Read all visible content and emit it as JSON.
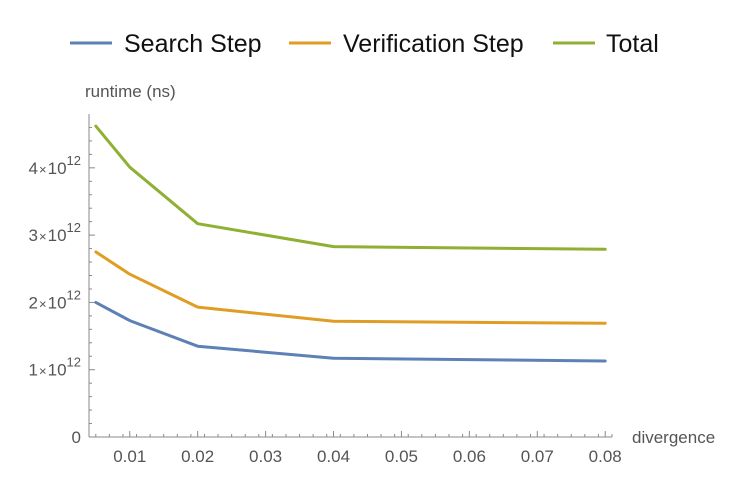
{
  "chart_data": {
    "type": "line",
    "title": "",
    "xlabel": "divergence",
    "ylabel": "runtime (ns)",
    "x": [
      0.005,
      0.01,
      0.02,
      0.04,
      0.08
    ],
    "xlim": [
      0.004,
      0.081
    ],
    "ylim": [
      0,
      4800000000000
    ],
    "x_ticks": [
      {
        "value": 0.01,
        "label": "0.01"
      },
      {
        "value": 0.02,
        "label": "0.02"
      },
      {
        "value": 0.03,
        "label": "0.03"
      },
      {
        "value": 0.04,
        "label": "0.04"
      },
      {
        "value": 0.05,
        "label": "0.05"
      },
      {
        "value": 0.06,
        "label": "0.06"
      },
      {
        "value": 0.07,
        "label": "0.07"
      },
      {
        "value": 0.08,
        "label": "0.08"
      }
    ],
    "y_ticks": [
      {
        "value": 0,
        "label": "0"
      },
      {
        "value": 1000000000000,
        "mantissa": "1",
        "times": "×",
        "base": "10",
        "exponent": "12"
      },
      {
        "value": 2000000000000,
        "mantissa": "2",
        "times": "×",
        "base": "10",
        "exponent": "12"
      },
      {
        "value": 3000000000000,
        "mantissa": "3",
        "times": "×",
        "base": "10",
        "exponent": "12"
      },
      {
        "value": 4000000000000,
        "mantissa": "4",
        "times": "×",
        "base": "10",
        "exponent": "12"
      }
    ],
    "legend_position": "top",
    "grid": false,
    "series": [
      {
        "name": "Search Step",
        "color": "#5e81b5",
        "values": [
          2000000000000,
          1730000000000,
          1350000000000,
          1170000000000,
          1130000000000
        ]
      },
      {
        "name": "Verification Step",
        "color": "#e19c24",
        "values": [
          2750000000000,
          2420000000000,
          1930000000000,
          1720000000000,
          1690000000000
        ]
      },
      {
        "name": "Total",
        "color": "#8fb032",
        "values": [
          4620000000000,
          4010000000000,
          3170000000000,
          2830000000000,
          2790000000000
        ]
      }
    ]
  }
}
